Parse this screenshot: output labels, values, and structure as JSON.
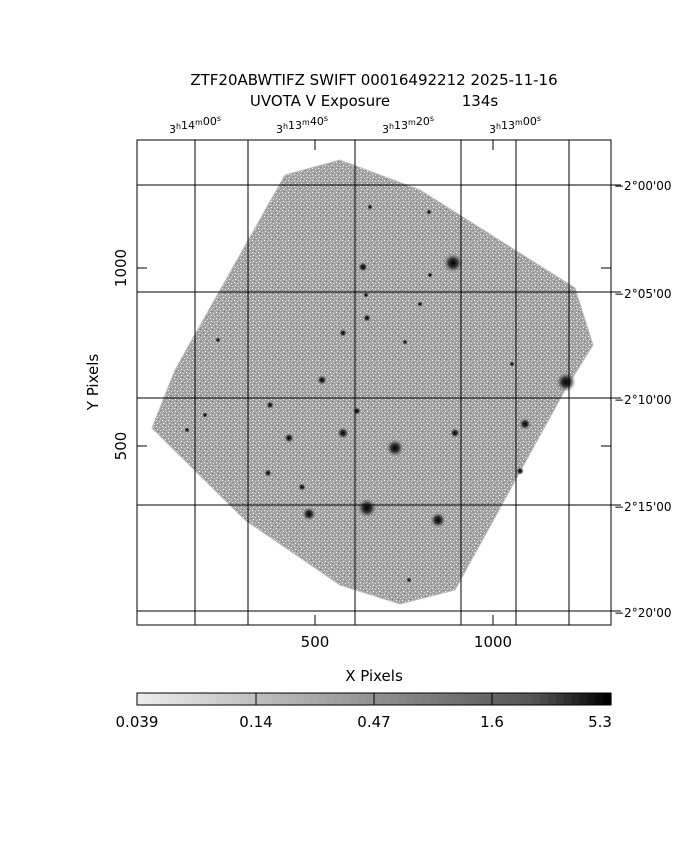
{
  "header": {
    "title_line1": "ZTF20ABWTIFZ SWIFT 00016492212 2025-11-16",
    "title_line2_label": "UVOTA V Exposure",
    "title_line2_value": "134s"
  },
  "axes": {
    "x_label": "X Pixels",
    "y_label": "Y Pixels",
    "x_ticks": [
      "500",
      "1000"
    ],
    "y_ticks": [
      "1000",
      "500"
    ],
    "ra_ticks": [
      {
        "h": "3",
        "m": "14",
        "s": "00"
      },
      {
        "h": "3",
        "m": "13",
        "s": "40"
      },
      {
        "h": "3",
        "m": "13",
        "s": "20"
      },
      {
        "h": "3",
        "m": "13",
        "s": "00"
      }
    ],
    "dec_ticks": [
      "−2°00'00",
      "−2°05'00",
      "−2°10'00",
      "−2°15'00",
      "−2°20'00"
    ]
  },
  "colorbar": {
    "labels": [
      "0.039",
      "0.14",
      "0.47",
      "1.6",
      "5.3"
    ]
  },
  "colors": {
    "frame": "#000000",
    "background": "#ffffff",
    "field": "#9a9a9a"
  }
}
